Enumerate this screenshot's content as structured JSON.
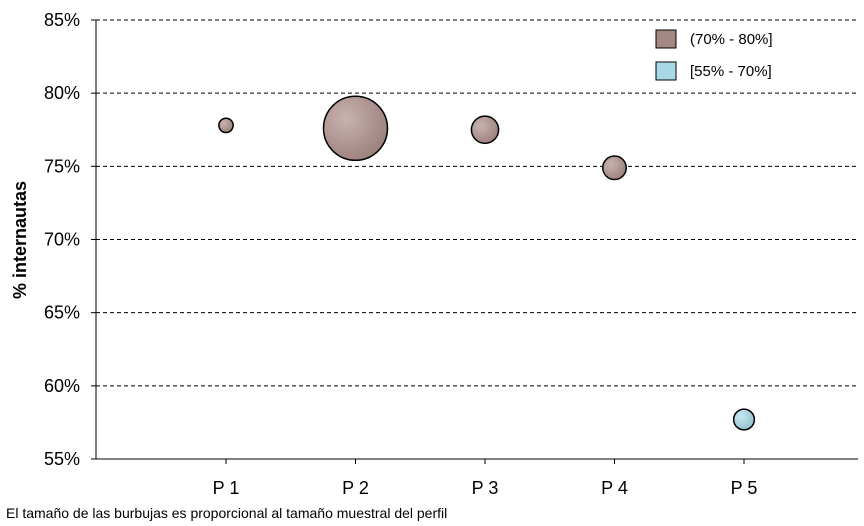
{
  "chart_data": {
    "type": "bubble",
    "categories": [
      "P 1",
      "P 2",
      "P 3",
      "P 4",
      "P 5"
    ],
    "ylabel": "% internautas",
    "ylim": [
      55,
      85
    ],
    "yticks": [
      55,
      60,
      65,
      70,
      75,
      80,
      85
    ],
    "ytick_labels": [
      "55%",
      "60%",
      "65%",
      "70%",
      "75%",
      "80%",
      "85%"
    ],
    "grid": "horizontal-dashed",
    "legend_position": "top-right",
    "legend": [
      {
        "label": "(70% - 80%]",
        "color": "#a38884"
      },
      {
        "label": "[55% - 70%]",
        "color": "#a9d8e6"
      }
    ],
    "points": [
      {
        "category": "P 1",
        "y": 77.8,
        "size": 1.0,
        "group": 0
      },
      {
        "category": "P 2",
        "y": 77.6,
        "size": 20.0,
        "group": 0
      },
      {
        "category": "P 3",
        "y": 77.5,
        "size": 3.6,
        "group": 0
      },
      {
        "category": "P 4",
        "y": 74.9,
        "size": 2.7,
        "group": 0
      },
      {
        "category": "P 5",
        "y": 57.7,
        "size": 2.1,
        "group": 1
      }
    ],
    "note": "El tamaño de las burbujas es proporcional al tamaño muestral del perfil"
  }
}
